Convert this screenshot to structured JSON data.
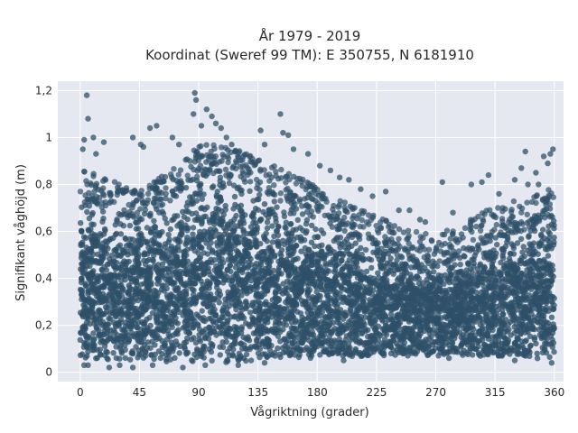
{
  "chart_data": {
    "type": "scatter",
    "title_line1": "År 1979 - 2019",
    "title_line2": "Koordinat (Sweref 99 TM): E 350755, N 6181910",
    "xlabel": "Vågriktning (grader)",
    "ylabel": "Signifikant våghöjd (m)",
    "xlim": [
      -17,
      367
    ],
    "ylim": [
      -0.04,
      1.24
    ],
    "x_ticks": [
      0,
      45,
      90,
      135,
      180,
      225,
      270,
      315,
      360
    ],
    "x_tick_labels": [
      "0",
      "45",
      "90",
      "135",
      "180",
      "225",
      "270",
      "315",
      "360"
    ],
    "y_ticks": [
      0,
      0.2,
      0.4,
      0.6,
      0.8,
      1.0,
      1.2
    ],
    "y_tick_labels": [
      "0",
      "0,2",
      "0,4",
      "0,6",
      "0,8",
      "1",
      "1,2"
    ],
    "grid": true,
    "colors": {
      "marker": "#2e5068",
      "plot_bg": "#e5e8f0",
      "grid": "#ffffff"
    },
    "density_envelope": {
      "x": [
        0,
        20,
        45,
        70,
        90,
        110,
        135,
        160,
        180,
        200,
        225,
        250,
        270,
        290,
        315,
        340,
        360
      ],
      "y_low": [
        0.06,
        0.05,
        0.05,
        0.04,
        0.04,
        0.04,
        0.05,
        0.05,
        0.06,
        0.06,
        0.07,
        0.07,
        0.07,
        0.07,
        0.06,
        0.06,
        0.05
      ],
      "y_high": [
        0.78,
        0.74,
        0.68,
        0.78,
        0.88,
        0.88,
        0.82,
        0.76,
        0.7,
        0.64,
        0.58,
        0.52,
        0.5,
        0.54,
        0.62,
        0.66,
        0.7
      ]
    },
    "points": [
      [
        5,
        1.18
      ],
      [
        6,
        1.08
      ],
      [
        3,
        0.99
      ],
      [
        10,
        1.0
      ],
      [
        18,
        0.98
      ],
      [
        12,
        0.93
      ],
      [
        2,
        0.95
      ],
      [
        40,
        1.0
      ],
      [
        46,
        0.97
      ],
      [
        53,
        1.04
      ],
      [
        58,
        1.05
      ],
      [
        48,
        0.96
      ],
      [
        70,
        1.0
      ],
      [
        75,
        0.97
      ],
      [
        87,
        1.19
      ],
      [
        88,
        1.16
      ],
      [
        86,
        1.1
      ],
      [
        92,
        1.05
      ],
      [
        96,
        1.12
      ],
      [
        100,
        1.09
      ],
      [
        103,
        1.06
      ],
      [
        107,
        1.04
      ],
      [
        111,
        1.0
      ],
      [
        115,
        0.97
      ],
      [
        118,
        0.94
      ],
      [
        124,
        0.92
      ],
      [
        137,
        1.03
      ],
      [
        140,
        0.97
      ],
      [
        152,
        1.1
      ],
      [
        154,
        1.02
      ],
      [
        158,
        1.01
      ],
      [
        162,
        0.95
      ],
      [
        173,
        0.93
      ],
      [
        182,
        0.88
      ],
      [
        190,
        0.86
      ],
      [
        197,
        0.83
      ],
      [
        204,
        0.82
      ],
      [
        213,
        0.78
      ],
      [
        222,
        0.75
      ],
      [
        232,
        0.77
      ],
      [
        242,
        0.69
      ],
      [
        250,
        0.69
      ],
      [
        258,
        0.65
      ],
      [
        262,
        0.64
      ],
      [
        275,
        0.81
      ],
      [
        283,
        0.68
      ],
      [
        297,
        0.8
      ],
      [
        305,
        0.81
      ],
      [
        310,
        0.84
      ],
      [
        318,
        0.76
      ],
      [
        330,
        0.82
      ],
      [
        335,
        0.87
      ],
      [
        338,
        0.94
      ],
      [
        340,
        0.8
      ],
      [
        346,
        0.85
      ],
      [
        352,
        0.92
      ],
      [
        357,
        0.93
      ],
      [
        359,
        0.95
      ],
      [
        355,
        0.89
      ],
      [
        348,
        0.8
      ],
      [
        3,
        0.03
      ],
      [
        6,
        0.03
      ],
      [
        22,
        0.02
      ],
      [
        30,
        0.03
      ],
      [
        40,
        0.02
      ],
      [
        55,
        0.03
      ],
      [
        78,
        0.02
      ],
      [
        95,
        0.03
      ],
      [
        120,
        0.03
      ],
      [
        140,
        0.04
      ],
      [
        200,
        0.05
      ],
      [
        280,
        0.06
      ],
      [
        330,
        0.05
      ],
      [
        358,
        0.04
      ]
    ]
  }
}
